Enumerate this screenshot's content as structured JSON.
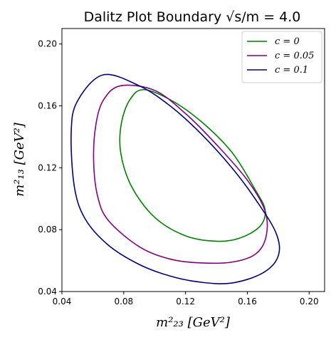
{
  "chart_data": {
    "type": "line",
    "title": "Dalitz Plot Boundary √s/m = 4.0",
    "xlabel": "m²₂₃ [GeV²]",
    "ylabel": "m²₁₃ [GeV²]",
    "xlim": [
      0.04,
      0.21
    ],
    "ylim": [
      0.04,
      0.21
    ],
    "xticks": [
      "0.04",
      "0.08",
      "0.12",
      "0.16",
      "0.20"
    ],
    "yticks": [
      "0.04",
      "0.08",
      "0.12",
      "0.16",
      "0.20"
    ],
    "grid": false,
    "legend_position": "top-right",
    "series": [
      {
        "name": "c = 0",
        "color": "#008000",
        "x": [
          0.0927,
          0.11,
          0.13,
          0.15,
          0.165,
          0.1715,
          0.168,
          0.155,
          0.14,
          0.12,
          0.1,
          0.085,
          0.078,
          0.0785,
          0.084,
          0.0927
        ],
        "y": [
          0.1705,
          0.164,
          0.15,
          0.13,
          0.106,
          0.0927,
          0.082,
          0.0745,
          0.0725,
          0.076,
          0.088,
          0.108,
          0.13,
          0.149,
          0.164,
          0.1705
        ]
      },
      {
        "name": "c = 0.05",
        "color": "#800080",
        "x": [
          0.078,
          0.1,
          0.12,
          0.14,
          0.16,
          0.1715,
          0.172,
          0.165,
          0.15,
          0.13,
          0.11,
          0.09,
          0.07,
          0.063,
          0.0605,
          0.062,
          0.067,
          0.078
        ],
        "y": [
          0.173,
          0.17,
          0.155,
          0.135,
          0.112,
          0.092,
          0.075,
          0.064,
          0.059,
          0.0585,
          0.061,
          0.069,
          0.086,
          0.102,
          0.125,
          0.148,
          0.164,
          0.173
        ]
      },
      {
        "name": "c = 0.1",
        "color": "#00007f",
        "x": [
          0.0665,
          0.09,
          0.11,
          0.13,
          0.15,
          0.165,
          0.1785,
          0.18,
          0.17,
          0.15,
          0.13,
          0.11,
          0.09,
          0.07,
          0.055,
          0.048,
          0.046,
          0.05,
          0.0665
        ],
        "y": [
          0.18,
          0.173,
          0.16,
          0.142,
          0.12,
          0.1,
          0.078,
          0.063,
          0.052,
          0.0455,
          0.046,
          0.05,
          0.0575,
          0.07,
          0.087,
          0.108,
          0.143,
          0.163,
          0.18
        ]
      }
    ]
  }
}
